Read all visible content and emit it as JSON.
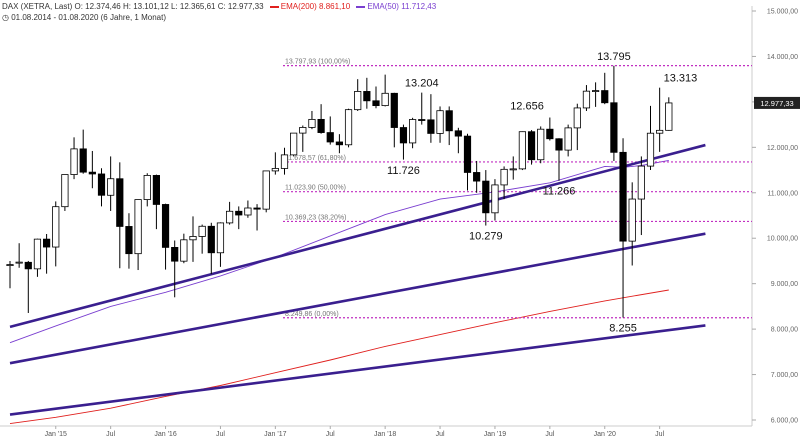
{
  "header": {
    "line1_prefix": "DAX (XETRA, Last)",
    "ohlc": "O: 12.374,46  H: 13.101,12  L: 12.365,61  C: 12.977,33",
    "ema200_label": "EMA(200)",
    "ema200_value": "8.861,10",
    "ema50_label": "EMA(50)",
    "ema50_value": "11.712,43",
    "line2": "01.08.2014 - 01.08.2020  (6 Jahre, 1 Monat)"
  },
  "colors": {
    "ema200": "#e0201e",
    "ema50": "#7a3fd0",
    "trendline": "#3a1f8f",
    "fib": "#c12fc1",
    "candle_up": "#ffffff",
    "candle_down": "#000000",
    "last_price_bg": "#222222"
  },
  "chart_data": {
    "type": "candlestick",
    "title": "DAX (XETRA, Last)",
    "subtitle": "01.08.2014 - 01.08.2020 (6 Jahre, 1 Monat)",
    "ylim": [
      5900,
      15100
    ],
    "y_ticks": [
      {
        "value": 6000,
        "label": "6.000,00"
      },
      {
        "value": 7000,
        "label": "7.000,00"
      },
      {
        "value": 8000,
        "label": "8.000,00"
      },
      {
        "value": 9000,
        "label": "9.000,00"
      },
      {
        "value": 10000,
        "label": "10.000,00"
      },
      {
        "value": 11000,
        "label": "11.000,00"
      },
      {
        "value": 12000,
        "label": "12.000,00"
      },
      {
        "value": 13000,
        "label": "13.000,00"
      },
      {
        "value": 14000,
        "label": "14.000,00"
      },
      {
        "value": 15000,
        "label": "15.000,00"
      }
    ],
    "x_ticks": [
      {
        "date": "2015-01",
        "label": "Jan '15"
      },
      {
        "date": "2015-07",
        "label": "Jul"
      },
      {
        "date": "2016-01",
        "label": "Jan '16"
      },
      {
        "date": "2016-07",
        "label": "Jul"
      },
      {
        "date": "2017-01",
        "label": "Jan '17"
      },
      {
        "date": "2017-07",
        "label": "Jul"
      },
      {
        "date": "2018-01",
        "label": "Jan '18"
      },
      {
        "date": "2018-07",
        "label": "Jul"
      },
      {
        "date": "2019-01",
        "label": "Jan '19"
      },
      {
        "date": "2019-07",
        "label": "Jul"
      },
      {
        "date": "2020-01",
        "label": "Jan '20"
      },
      {
        "date": "2020-07",
        "label": "Jul"
      }
    ],
    "last_price_label": "12.977,33",
    "last_price": 12977.33,
    "candles": [
      {
        "date": "2014-08",
        "o": 9400,
        "h": 9500,
        "l": 8900,
        "c": 9420
      },
      {
        "date": "2014-09",
        "o": 9470,
        "h": 9890,
        "l": 9350,
        "c": 9474
      },
      {
        "date": "2014-10",
        "o": 9470,
        "h": 9500,
        "l": 8355,
        "c": 9326
      },
      {
        "date": "2014-11",
        "o": 9326,
        "h": 9990,
        "l": 9150,
        "c": 9980
      },
      {
        "date": "2014-12",
        "o": 9980,
        "h": 10093,
        "l": 9220,
        "c": 9806
      },
      {
        "date": "2015-01",
        "o": 9806,
        "h": 10810,
        "l": 9380,
        "c": 10694
      },
      {
        "date": "2015-02",
        "o": 10694,
        "h": 11400,
        "l": 10600,
        "c": 11401
      },
      {
        "date": "2015-03",
        "o": 11401,
        "h": 12220,
        "l": 11300,
        "c": 11966
      },
      {
        "date": "2015-04",
        "o": 11966,
        "h": 12390,
        "l": 11420,
        "c": 11454
      },
      {
        "date": "2015-05",
        "o": 11454,
        "h": 11920,
        "l": 11100,
        "c": 11414
      },
      {
        "date": "2015-06",
        "o": 11414,
        "h": 11540,
        "l": 10700,
        "c": 10945
      },
      {
        "date": "2015-07",
        "o": 10945,
        "h": 11800,
        "l": 10600,
        "c": 11309
      },
      {
        "date": "2015-08",
        "o": 11309,
        "h": 11670,
        "l": 9340,
        "c": 10259
      },
      {
        "date": "2015-09",
        "o": 10259,
        "h": 10550,
        "l": 9330,
        "c": 9660
      },
      {
        "date": "2015-10",
        "o": 9660,
        "h": 10850,
        "l": 9300,
        "c": 10850
      },
      {
        "date": "2015-11",
        "o": 10850,
        "h": 11430,
        "l": 10700,
        "c": 11382
      },
      {
        "date": "2015-12",
        "o": 11382,
        "h": 11400,
        "l": 10200,
        "c": 10743
      },
      {
        "date": "2016-01",
        "o": 10743,
        "h": 10760,
        "l": 9310,
        "c": 9798
      },
      {
        "date": "2016-02",
        "o": 9798,
        "h": 9950,
        "l": 8700,
        "c": 9495
      },
      {
        "date": "2016-03",
        "o": 9495,
        "h": 10100,
        "l": 9450,
        "c": 9965
      },
      {
        "date": "2016-04",
        "o": 9965,
        "h": 10480,
        "l": 9480,
        "c": 10039
      },
      {
        "date": "2016-05",
        "o": 10039,
        "h": 10300,
        "l": 9660,
        "c": 10263
      },
      {
        "date": "2016-06",
        "o": 10263,
        "h": 10340,
        "l": 9210,
        "c": 9680
      },
      {
        "date": "2016-07",
        "o": 9680,
        "h": 10350,
        "l": 9370,
        "c": 10337
      },
      {
        "date": "2016-08",
        "o": 10337,
        "h": 10800,
        "l": 10300,
        "c": 10593
      },
      {
        "date": "2016-09",
        "o": 10593,
        "h": 10700,
        "l": 10200,
        "c": 10511
      },
      {
        "date": "2016-10",
        "o": 10511,
        "h": 10830,
        "l": 10450,
        "c": 10665
      },
      {
        "date": "2016-11",
        "o": 10665,
        "h": 10750,
        "l": 10170,
        "c": 10640
      },
      {
        "date": "2016-12",
        "o": 10640,
        "h": 11480,
        "l": 10570,
        "c": 11481
      },
      {
        "date": "2017-01",
        "o": 11481,
        "h": 11890,
        "l": 11400,
        "c": 11535
      },
      {
        "date": "2017-02",
        "o": 11535,
        "h": 11990,
        "l": 11400,
        "c": 11834
      },
      {
        "date": "2017-03",
        "o": 11834,
        "h": 12300,
        "l": 11800,
        "c": 12313
      },
      {
        "date": "2017-04",
        "o": 12313,
        "h": 12480,
        "l": 11900,
        "c": 12438
      },
      {
        "date": "2017-05",
        "o": 12438,
        "h": 12800,
        "l": 12400,
        "c": 12615
      },
      {
        "date": "2017-06",
        "o": 12615,
        "h": 12950,
        "l": 12300,
        "c": 12325
      },
      {
        "date": "2017-07",
        "o": 12325,
        "h": 12680,
        "l": 12060,
        "c": 12118
      },
      {
        "date": "2017-08",
        "o": 12118,
        "h": 12290,
        "l": 11870,
        "c": 12056
      },
      {
        "date": "2017-09",
        "o": 12056,
        "h": 12850,
        "l": 12000,
        "c": 12829
      },
      {
        "date": "2017-10",
        "o": 12829,
        "h": 13500,
        "l": 12800,
        "c": 13230
      },
      {
        "date": "2017-11",
        "o": 13230,
        "h": 13530,
        "l": 12850,
        "c": 13024
      },
      {
        "date": "2017-12",
        "o": 13024,
        "h": 13340,
        "l": 12860,
        "c": 12918
      },
      {
        "date": "2018-01",
        "o": 12918,
        "h": 13600,
        "l": 12900,
        "c": 13189
      },
      {
        "date": "2018-02",
        "o": 13189,
        "h": 13200,
        "l": 12000,
        "c": 12436
      },
      {
        "date": "2018-03",
        "o": 12436,
        "h": 12500,
        "l": 11730,
        "c": 12097
      },
      {
        "date": "2018-04",
        "o": 12097,
        "h": 12650,
        "l": 11980,
        "c": 12612
      },
      {
        "date": "2018-05",
        "o": 12612,
        "h": 13204,
        "l": 12500,
        "c": 12605
      },
      {
        "date": "2018-06",
        "o": 12605,
        "h": 13170,
        "l": 12100,
        "c": 12306
      },
      {
        "date": "2018-07",
        "o": 12306,
        "h": 12900,
        "l": 12100,
        "c": 12806
      },
      {
        "date": "2018-08",
        "o": 12806,
        "h": 12900,
        "l": 12050,
        "c": 12364
      },
      {
        "date": "2018-09",
        "o": 12364,
        "h": 12430,
        "l": 11870,
        "c": 12247
      },
      {
        "date": "2018-10",
        "o": 12247,
        "h": 12300,
        "l": 11050,
        "c": 11447
      },
      {
        "date": "2018-11",
        "o": 11447,
        "h": 11700,
        "l": 11000,
        "c": 11257
      },
      {
        "date": "2018-12",
        "o": 11257,
        "h": 11500,
        "l": 10279,
        "c": 10559
      },
      {
        "date": "2019-01",
        "o": 10559,
        "h": 11300,
        "l": 10390,
        "c": 11173
      },
      {
        "date": "2019-02",
        "o": 11173,
        "h": 11580,
        "l": 10860,
        "c": 11516
      },
      {
        "date": "2019-03",
        "o": 11516,
        "h": 11800,
        "l": 11290,
        "c": 11526
      },
      {
        "date": "2019-04",
        "o": 11526,
        "h": 12350,
        "l": 11500,
        "c": 12344
      },
      {
        "date": "2019-05",
        "o": 12344,
        "h": 12380,
        "l": 11620,
        "c": 11727
      },
      {
        "date": "2019-06",
        "o": 11727,
        "h": 12460,
        "l": 11650,
        "c": 12399
      },
      {
        "date": "2019-07",
        "o": 12399,
        "h": 12656,
        "l": 12150,
        "c": 12189
      },
      {
        "date": "2019-08",
        "o": 12189,
        "h": 12200,
        "l": 11266,
        "c": 11939
      },
      {
        "date": "2019-09",
        "o": 11939,
        "h": 12500,
        "l": 11800,
        "c": 12428
      },
      {
        "date": "2019-10",
        "o": 12428,
        "h": 12960,
        "l": 11940,
        "c": 12867
      },
      {
        "date": "2019-11",
        "o": 12867,
        "h": 13370,
        "l": 12800,
        "c": 13236
      },
      {
        "date": "2019-12",
        "o": 13236,
        "h": 13430,
        "l": 12890,
        "c": 13249
      },
      {
        "date": "2020-01",
        "o": 13249,
        "h": 13640,
        "l": 12950,
        "c": 12981
      },
      {
        "date": "2020-02",
        "o": 12981,
        "h": 13795,
        "l": 11700,
        "c": 11890
      },
      {
        "date": "2020-03",
        "o": 11890,
        "h": 12200,
        "l": 8255,
        "c": 9936
      },
      {
        "date": "2020-04",
        "o": 9936,
        "h": 11230,
        "l": 9400,
        "c": 10862
      },
      {
        "date": "2020-05",
        "o": 10862,
        "h": 11800,
        "l": 10070,
        "c": 11587
      },
      {
        "date": "2020-06",
        "o": 11587,
        "h": 12913,
        "l": 11500,
        "c": 12311
      },
      {
        "date": "2020-07",
        "o": 12311,
        "h": 13313,
        "l": 11900,
        "c": 12374
      },
      {
        "date": "2020-08",
        "o": 12374,
        "h": 13101,
        "l": 12366,
        "c": 12977
      }
    ],
    "ema50": [
      {
        "date": "2014-08",
        "v": 7700
      },
      {
        "date": "2015-01",
        "v": 8070
      },
      {
        "date": "2015-07",
        "v": 8500
      },
      {
        "date": "2016-01",
        "v": 8810
      },
      {
        "date": "2016-07",
        "v": 9170
      },
      {
        "date": "2017-01",
        "v": 9580
      },
      {
        "date": "2017-07",
        "v": 10050
      },
      {
        "date": "2018-01",
        "v": 10520
      },
      {
        "date": "2018-07",
        "v": 10860
      },
      {
        "date": "2019-01",
        "v": 11020
      },
      {
        "date": "2019-07",
        "v": 11220
      },
      {
        "date": "2020-01",
        "v": 11580
      },
      {
        "date": "2020-03",
        "v": 11560
      },
      {
        "date": "2020-05",
        "v": 11600
      },
      {
        "date": "2020-08",
        "v": 11712
      }
    ],
    "ema200": [
      {
        "date": "2014-08",
        "v": 5920
      },
      {
        "date": "2015-01",
        "v": 6060
      },
      {
        "date": "2015-07",
        "v": 6260
      },
      {
        "date": "2016-01",
        "v": 6520
      },
      {
        "date": "2016-07",
        "v": 6760
      },
      {
        "date": "2017-01",
        "v": 7040
      },
      {
        "date": "2017-07",
        "v": 7320
      },
      {
        "date": "2018-01",
        "v": 7620
      },
      {
        "date": "2018-07",
        "v": 7880
      },
      {
        "date": "2019-01",
        "v": 8140
      },
      {
        "date": "2019-07",
        "v": 8390
      },
      {
        "date": "2020-01",
        "v": 8620
      },
      {
        "date": "2020-08",
        "v": 8861
      }
    ],
    "fib_levels": [
      {
        "label": "13.797,93 (100,00%)",
        "value": 13797.93
      },
      {
        "label": "11.678,57 (61,80%)",
        "value": 11678.57
      },
      {
        "label": "11.023,90 (50,00%)",
        "value": 11023.9
      },
      {
        "label": "10.369,23 (38,20%)",
        "value": 10369.23
      },
      {
        "label": "8.249,86 (0,00%)",
        "value": 8249.86
      }
    ],
    "trendlines": [
      {
        "from": {
          "date": "2014-08",
          "v": 8050
        },
        "to": {
          "date": "2020-12",
          "v": 12050
        }
      },
      {
        "from": {
          "date": "2014-08",
          "v": 7250
        },
        "to": {
          "date": "2020-12",
          "v": 10100
        }
      },
      {
        "from": {
          "date": "2014-08",
          "v": 6120
        },
        "to": {
          "date": "2020-12",
          "v": 8080
        }
      }
    ],
    "annotations": [
      {
        "label": "13.795",
        "date": "2020-02",
        "v": 13795,
        "pos": "above"
      },
      {
        "label": "13.313",
        "date": "2020-07",
        "v": 13313,
        "pos": "above-right"
      },
      {
        "label": "13.204",
        "date": "2018-05",
        "v": 13204,
        "pos": "above"
      },
      {
        "label": "12.656",
        "date": "2019-07",
        "v": 12656,
        "pos": "above-left"
      },
      {
        "label": "11.726",
        "date": "2018-03",
        "v": 11726,
        "pos": "below"
      },
      {
        "label": "11.266",
        "date": "2019-08",
        "v": 11266,
        "pos": "below"
      },
      {
        "label": "10.279",
        "date": "2018-12",
        "v": 10279,
        "pos": "below"
      },
      {
        "label": "8.255",
        "date": "2020-03",
        "v": 8255,
        "pos": "below"
      }
    ]
  }
}
